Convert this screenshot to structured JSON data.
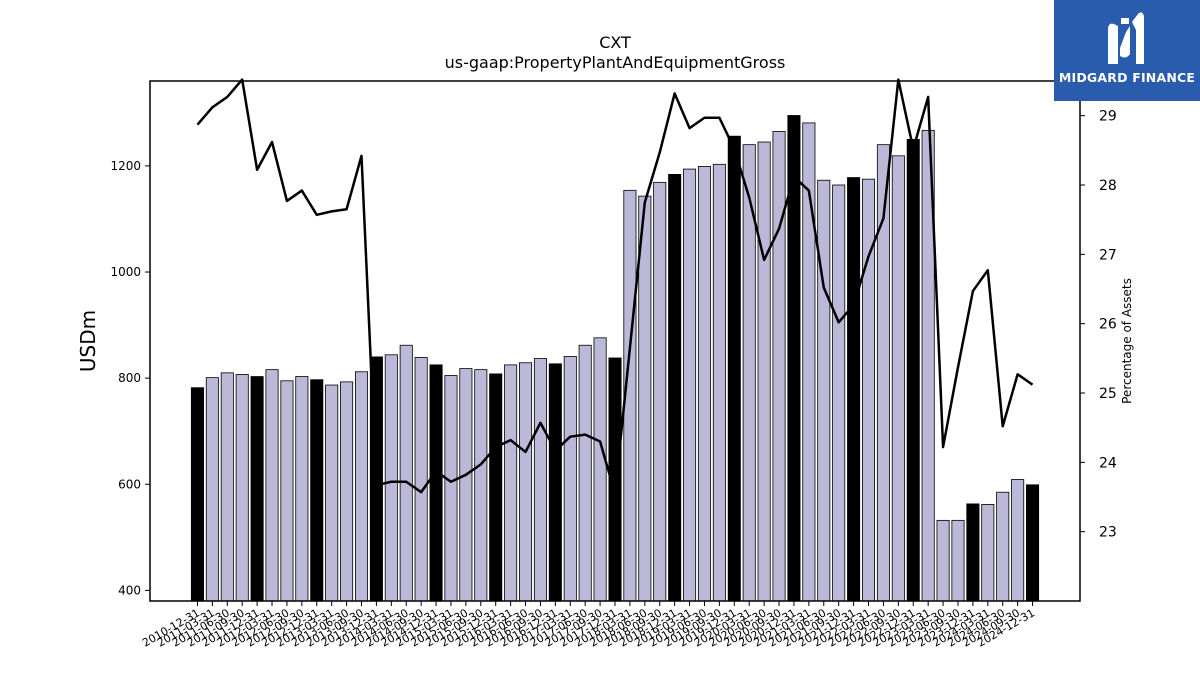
{
  "brand": {
    "name": "MIDGARD FINANCE",
    "logo_icon": "midgard-m-logo-icon",
    "background": "#2a5cad"
  },
  "chart_data": {
    "type": "bar",
    "title": "CXT",
    "subtitle": "us-gaap:PropertyPlantAndEquipmentGross",
    "ylabel": "USDm",
    "y2label": "Percentage of Assets",
    "ylim": [
      380,
      1360
    ],
    "y2lim": [
      22.0,
      29.5
    ],
    "yticks": [
      400,
      600,
      800,
      1000,
      1200
    ],
    "y2ticks": [
      23,
      24,
      25,
      26,
      27,
      28,
      29
    ],
    "grid": false,
    "colors": {
      "bar_default": "#bcb8d8",
      "bar_year_end": "#000000",
      "line": "#000000"
    },
    "categories": [
      "2010-12-31",
      "2011-03-31",
      "2011-06-30",
      "2011-09-30",
      "2011-12-31",
      "2012-03-31",
      "2012-06-30",
      "2012-09-30",
      "2012-12-31",
      "2013-03-31",
      "2013-06-30",
      "2013-09-30",
      "2013-12-31",
      "2014-03-31",
      "2014-06-30",
      "2014-09-30",
      "2014-12-31",
      "2015-03-31",
      "2015-06-30",
      "2015-09-30",
      "2015-12-31",
      "2016-03-31",
      "2016-06-30",
      "2016-09-30",
      "2016-12-31",
      "2017-03-31",
      "2017-06-30",
      "2017-09-30",
      "2017-12-31",
      "2018-03-31",
      "2018-06-30",
      "2018-09-30",
      "2018-12-31",
      "2019-03-31",
      "2019-06-30",
      "2019-09-30",
      "2019-12-31",
      "2020-03-31",
      "2020-06-30",
      "2020-09-30",
      "2020-12-31",
      "2021-03-31",
      "2021-06-30",
      "2021-09-30",
      "2021-12-31",
      "2022-03-31",
      "2022-06-30",
      "2022-09-30",
      "2022-12-31",
      "2023-03-31",
      "2023-06-30",
      "2023-09-30",
      "2023-12-31",
      "2024-03-31",
      "2024-06-30",
      "2024-09-30",
      "2024-12-31"
    ],
    "x_tick_labels": [
      "2010-12-31",
      "2011-03-31",
      "2011-06-30",
      "2011-09-30",
      "2011-12-31",
      "2012-03-31",
      "2012-06-30",
      "2012-09-30",
      "2012-12-31",
      "2013-03-31",
      "2013-06-30",
      "2013-09-30",
      "2013-12-31",
      "2014-03-31",
      "2014-06-30",
      "2014-09-30",
      "2014-12-31",
      "2015-03-31",
      "2015-06-30",
      "2015-09-30",
      "2015-12-31",
      "2016-03-31",
      "2016-06-30",
      "2016-09-30",
      "2016-12-31",
      "2017-03-31",
      "2017-06-30",
      "2017-09-30",
      "2017-12-31",
      "2018-03-31",
      "2018-06-30",
      "2018-09-30",
      "2018-12-31",
      "2019-03-31",
      "2019-06-30",
      "2019-09-30",
      "2019-12-31",
      "2020-03-31",
      "2020-06-30",
      "2020-09-30",
      "2020-12-31",
      "2021-03-31",
      "2021-06-30",
      "2021-09-30",
      "2021-12-31",
      "2022-03-31",
      "2022-06-30",
      "2022-09-30",
      "2022-12-31",
      "2023-03-31",
      "2023-06-30",
      "2023-09-30",
      "2023-12-31",
      "2024-03-31",
      "2024-06-30",
      "2024-09-30",
      "2024-12-31"
    ],
    "year_end": [
      true,
      false,
      false,
      false,
      true,
      false,
      false,
      false,
      true,
      false,
      false,
      false,
      true,
      false,
      false,
      false,
      true,
      false,
      false,
      false,
      true,
      false,
      false,
      false,
      true,
      false,
      false,
      false,
      true,
      false,
      false,
      false,
      true,
      false,
      false,
      false,
      true,
      false,
      false,
      false,
      true,
      false,
      false,
      false,
      true,
      false,
      false,
      false,
      true,
      false,
      false,
      false,
      true,
      false,
      false,
      false,
      true
    ],
    "series": [
      {
        "type": "bar",
        "axis": "left",
        "values": [
          782,
          801,
          810,
          807,
          803,
          816,
          795,
          803,
          797,
          787,
          793,
          812,
          840,
          844,
          862,
          839,
          825,
          805,
          818,
          816,
          808,
          825,
          829,
          837,
          827,
          841,
          862,
          876,
          838,
          1154,
          1143,
          1169,
          1184,
          1194,
          1199,
          1203,
          1256,
          1240,
          1245,
          1265,
          1295,
          1281,
          1173,
          1164,
          1178,
          1175,
          1240,
          1219,
          1250,
          1267,
          532,
          532,
          563,
          562,
          585,
          609,
          599
        ]
      },
      {
        "type": "line",
        "axis": "right",
        "values": [
          28.87,
          29.12,
          29.27,
          29.52,
          28.22,
          28.62,
          27.77,
          27.92,
          27.57,
          27.62,
          27.65,
          28.42,
          23.67,
          23.72,
          23.72,
          23.57,
          23.87,
          23.72,
          23.82,
          23.97,
          24.22,
          24.32,
          24.15,
          24.57,
          24.17,
          24.37,
          24.4,
          24.3,
          23.55,
          25.65,
          27.75,
          28.47,
          29.32,
          28.82,
          28.97,
          28.97,
          28.52,
          27.82,
          26.92,
          27.37,
          28.12,
          27.92,
          26.52,
          26.02,
          26.27,
          26.97,
          27.52,
          29.52,
          28.52,
          29.27,
          24.22,
          25.37,
          26.47,
          26.77,
          24.52,
          25.27,
          25.12
        ]
      }
    ]
  }
}
